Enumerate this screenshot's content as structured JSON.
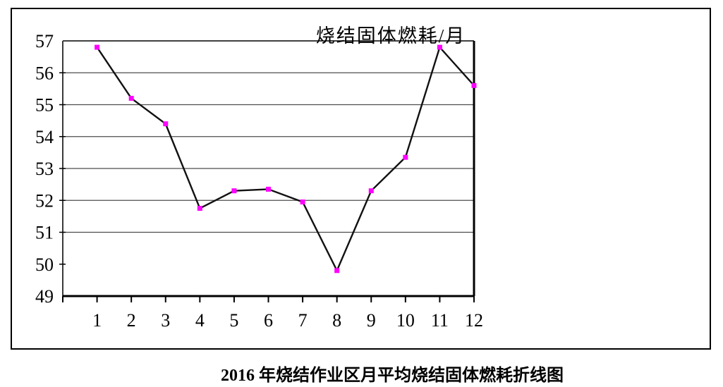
{
  "figure": {
    "title": "烧结固体燃耗/月",
    "caption": "2016 年烧结作业区月平均烧结固体燃耗折线图"
  },
  "chart_data": {
    "type": "line",
    "title": "烧结固体燃耗/月",
    "categories": [
      "1",
      "2",
      "3",
      "4",
      "5",
      "6",
      "7",
      "8",
      "9",
      "10",
      "11",
      "12"
    ],
    "values": [
      56.8,
      55.2,
      54.4,
      51.75,
      52.3,
      52.35,
      51.95,
      49.8,
      52.3,
      53.35,
      56.8,
      55.6
    ],
    "xlabel": "",
    "ylabel": "",
    "ylim": [
      49,
      57
    ],
    "yticks": [
      49,
      50,
      51,
      52,
      53,
      54,
      55,
      56,
      57
    ],
    "gridline_values": [
      51,
      52,
      53,
      54,
      55,
      56
    ],
    "grid": true,
    "legend": "none",
    "marker_color": "#FF00FF",
    "line_color": "#111111"
  },
  "style": {
    "grid_color": "#4d4d4d",
    "axis_color": "#000000",
    "left_axis_color": "#3a3a3a",
    "text_color": "#000000",
    "background": "#FFFFFF"
  }
}
